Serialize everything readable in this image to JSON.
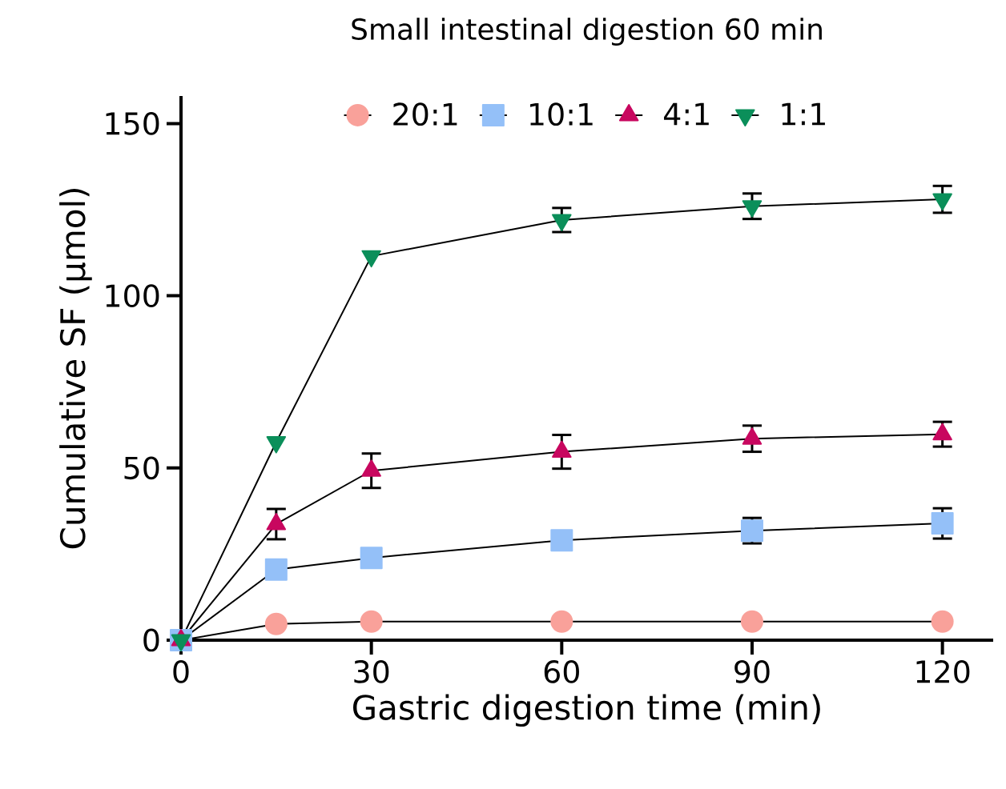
{
  "chart_data": {
    "type": "line",
    "title": "Small intestinal digestion 60 min",
    "xlabel": "Gastric digestion time (min)",
    "ylabel": "Cumulative SF (µmol)",
    "x": [
      0,
      15,
      30,
      60,
      90,
      120
    ],
    "series": [
      {
        "name": "20:1",
        "color": "#f9a19a",
        "marker": "circle",
        "values": [
          0,
          4.7,
          5.4,
          5.4,
          5.4,
          5.4
        ],
        "errors": [
          null,
          null,
          null,
          null,
          null,
          null
        ]
      },
      {
        "name": "10:1",
        "color": "#94c0f8",
        "marker": "square",
        "values": [
          0,
          20.5,
          23.9,
          29,
          31.8,
          33.9
        ],
        "errors": [
          null,
          null,
          null,
          null,
          3.7,
          4.4
        ]
      },
      {
        "name": "4:1",
        "color": "#c8075f",
        "marker": "triangle",
        "values": [
          0,
          33.7,
          49.2,
          54.7,
          58.5,
          59.8
        ],
        "errors": [
          null,
          4.4,
          5,
          4.9,
          3.8,
          3.6
        ]
      },
      {
        "name": "1:1",
        "color": "#0b8f5a",
        "marker": "triangle-down",
        "values": [
          0,
          57.5,
          111.5,
          122,
          126,
          128
        ],
        "errors": [
          null,
          null,
          null,
          3.5,
          3.7,
          3.9
        ]
      }
    ],
    "xlim": [
      0,
      128
    ],
    "ylim": [
      0,
      158
    ],
    "xticks": [
      0,
      30,
      60,
      90,
      120
    ],
    "yticks": [
      0,
      50,
      100,
      150
    ],
    "legend": "top",
    "line_style": "solid"
  }
}
